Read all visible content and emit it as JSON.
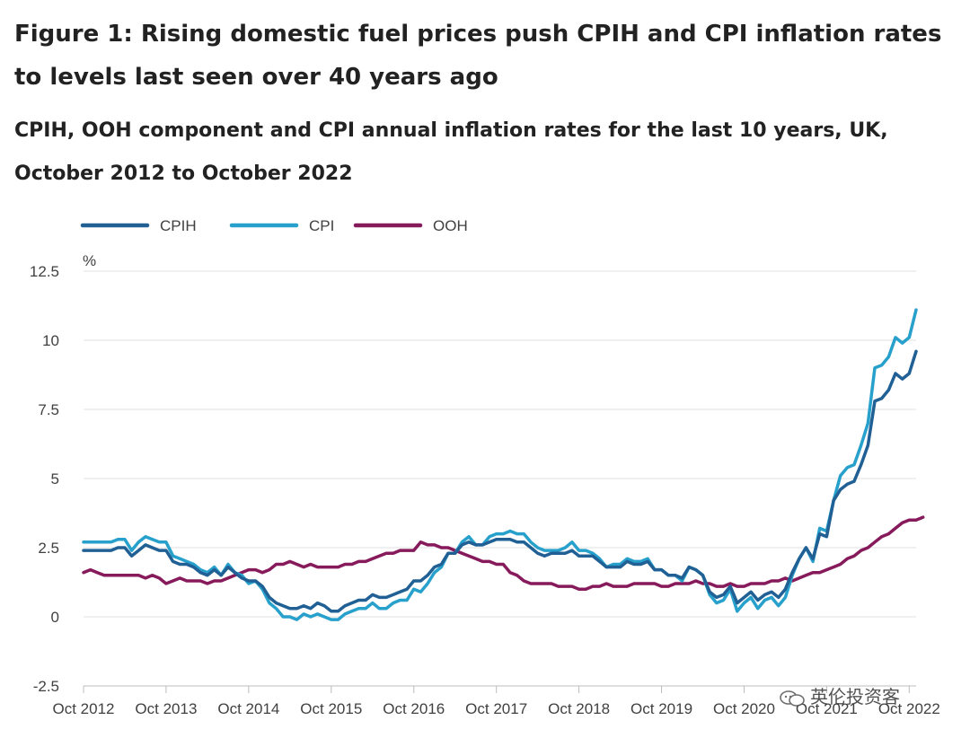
{
  "title": "Figure 1: Rising domestic fuel prices push CPIH and CPI inflation rates to levels last seen over 40 years ago",
  "subtitle": "CPIH, OOH component and CPI annual inflation rates for the last 10 years, UK, October 2012 to October 2022",
  "watermark": "英伦投资客",
  "chart_data": {
    "type": "line",
    "ylabel": "%",
    "ylim": [
      -2.5,
      12.5
    ],
    "yticks": [
      "12.5",
      "10",
      "7.5",
      "5",
      "2.5",
      "0",
      "-2.5"
    ],
    "xticks": [
      "Oct 2012",
      "Oct 2013",
      "Oct 2014",
      "Oct 2015",
      "Oct 2016",
      "Oct 2017",
      "Oct 2018",
      "Oct 2019",
      "Oct 2020",
      "Oct 2021",
      "Oct 2022"
    ],
    "grid": true,
    "legend_position": "top-left",
    "series": [
      {
        "name": "CPIH",
        "color": "#206095",
        "values": [
          2.4,
          2.4,
          2.4,
          2.4,
          2.4,
          2.5,
          2.5,
          2.2,
          2.4,
          2.6,
          2.5,
          2.4,
          2.4,
          2.0,
          1.9,
          1.9,
          1.8,
          1.6,
          1.5,
          1.7,
          1.5,
          1.8,
          1.6,
          1.4,
          1.3,
          1.3,
          1.1,
          0.7,
          0.5,
          0.4,
          0.3,
          0.3,
          0.4,
          0.3,
          0.5,
          0.4,
          0.2,
          0.2,
          0.4,
          0.5,
          0.6,
          0.6,
          0.8,
          0.7,
          0.7,
          0.8,
          0.9,
          1.0,
          1.3,
          1.3,
          1.5,
          1.8,
          1.9,
          2.3,
          2.3,
          2.6,
          2.7,
          2.6,
          2.6,
          2.7,
          2.8,
          2.8,
          2.8,
          2.7,
          2.7,
          2.5,
          2.3,
          2.2,
          2.3,
          2.3,
          2.3,
          2.4,
          2.2,
          2.2,
          2.2,
          2.0,
          1.8,
          1.8,
          1.8,
          2.0,
          1.9,
          1.9,
          2.0,
          1.7,
          1.7,
          1.5,
          1.5,
          1.4,
          1.8,
          1.7,
          1.5,
          0.9,
          0.7,
          0.8,
          1.1,
          0.5,
          0.7,
          0.9,
          0.6,
          0.8,
          0.9,
          0.7,
          1.0,
          1.6,
          2.1,
          2.5,
          2.1,
          3.0,
          2.9,
          4.2,
          4.6,
          4.8,
          4.9,
          5.5,
          6.2,
          7.8,
          7.9,
          8.2,
          8.8,
          8.6,
          8.8,
          9.6
        ]
      },
      {
        "name": "CPI",
        "color": "#27A0CC",
        "values": [
          2.7,
          2.7,
          2.7,
          2.7,
          2.7,
          2.8,
          2.8,
          2.4,
          2.7,
          2.9,
          2.8,
          2.7,
          2.7,
          2.2,
          2.1,
          2.0,
          1.9,
          1.7,
          1.6,
          1.8,
          1.5,
          1.9,
          1.6,
          1.5,
          1.2,
          1.3,
          1.0,
          0.5,
          0.3,
          0.0,
          0.0,
          -0.1,
          0.1,
          0.0,
          0.1,
          0.0,
          -0.1,
          -0.1,
          0.1,
          0.2,
          0.3,
          0.3,
          0.5,
          0.3,
          0.3,
          0.5,
          0.6,
          0.6,
          1.0,
          0.9,
          1.2,
          1.6,
          1.8,
          2.3,
          2.3,
          2.7,
          2.9,
          2.6,
          2.6,
          2.9,
          3.0,
          3.0,
          3.1,
          3.0,
          3.0,
          2.7,
          2.5,
          2.4,
          2.4,
          2.4,
          2.5,
          2.7,
          2.4,
          2.4,
          2.3,
          2.1,
          1.8,
          1.9,
          1.9,
          2.1,
          2.0,
          2.0,
          2.1,
          1.7,
          1.7,
          1.5,
          1.5,
          1.3,
          1.8,
          1.7,
          1.5,
          0.8,
          0.5,
          0.6,
          1.0,
          0.2,
          0.5,
          0.7,
          0.3,
          0.6,
          0.7,
          0.4,
          0.7,
          1.5,
          2.1,
          2.5,
          2.0,
          3.2,
          3.1,
          4.2,
          5.1,
          5.4,
          5.5,
          6.2,
          7.0,
          9.0,
          9.1,
          9.4,
          10.1,
          9.9,
          10.1,
          11.1
        ]
      },
      {
        "name": "OOH",
        "color": "#871A5B",
        "values": [
          1.6,
          1.7,
          1.6,
          1.5,
          1.5,
          1.5,
          1.5,
          1.5,
          1.5,
          1.4,
          1.5,
          1.4,
          1.2,
          1.3,
          1.4,
          1.3,
          1.3,
          1.3,
          1.2,
          1.3,
          1.3,
          1.4,
          1.5,
          1.6,
          1.7,
          1.7,
          1.6,
          1.7,
          1.9,
          1.9,
          2.0,
          1.9,
          1.8,
          1.9,
          1.8,
          1.8,
          1.8,
          1.8,
          1.9,
          1.9,
          2.0,
          2.0,
          2.1,
          2.2,
          2.3,
          2.3,
          2.4,
          2.4,
          2.4,
          2.7,
          2.6,
          2.6,
          2.5,
          2.5,
          2.4,
          2.3,
          2.2,
          2.1,
          2.0,
          2.0,
          1.9,
          1.9,
          1.6,
          1.5,
          1.3,
          1.2,
          1.2,
          1.2,
          1.2,
          1.1,
          1.1,
          1.1,
          1.0,
          1.0,
          1.1,
          1.1,
          1.2,
          1.1,
          1.1,
          1.1,
          1.2,
          1.2,
          1.2,
          1.2,
          1.1,
          1.1,
          1.2,
          1.2,
          1.2,
          1.3,
          1.2,
          1.2,
          1.1,
          1.1,
          1.2,
          1.1,
          1.1,
          1.2,
          1.2,
          1.2,
          1.3,
          1.3,
          1.4,
          1.3,
          1.4,
          1.5,
          1.6,
          1.6,
          1.7,
          1.8,
          1.9,
          2.1,
          2.2,
          2.4,
          2.5,
          2.7,
          2.9,
          3.0,
          3.2,
          3.4,
          3.5,
          3.5,
          3.6
        ]
      }
    ]
  }
}
